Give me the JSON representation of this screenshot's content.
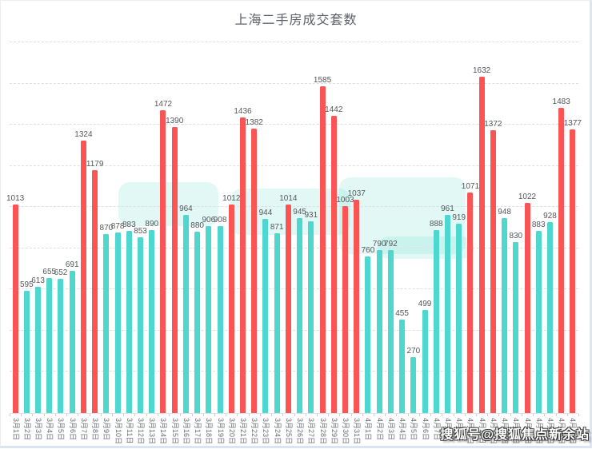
{
  "watermark": {
    "text": "搜狐号@搜狐焦点新余站"
  },
  "colors": {
    "bar_high": "#fb5454",
    "bar_low": "#4ed7ce",
    "grid": "#dce0e6",
    "label_text": "#54575d",
    "axis_text": "#6a6e74",
    "title_text": "#5d6168"
  },
  "chart_data": {
    "type": "bar",
    "title": "上海二手房成交套数",
    "xlabel": "",
    "ylabel": "",
    "y_axis_labels": "none",
    "legend": "none",
    "grid": "dashed horizontal",
    "x_label_rotation": 90,
    "data_labels": "above each bar",
    "ylim": [
      0,
      1800
    ],
    "grid_step": 200,
    "color_rule": {
      "threshold": 1000,
      "at_or_above": "#fb5454",
      "below": "#4ed7ce"
    },
    "categories": [
      "3月1日",
      "3月2日",
      "3月3日",
      "3月4日",
      "3月5日",
      "3月6日",
      "3月7日",
      "3月8日",
      "3月9日",
      "3月10日",
      "3月11日",
      "3月12日",
      "3月13日",
      "3月14日",
      "3月15日",
      "3月16日",
      "3月17日",
      "3月18日",
      "3月19日",
      "3月20日",
      "3月21日",
      "3月22日",
      "3月23日",
      "3月24日",
      "3月25日",
      "3月26日",
      "3月27日",
      "3月28日",
      "3月29日",
      "3月30日",
      "3月31日",
      "4月1日",
      "4月2日",
      "4月3日",
      "4月4日",
      "4月5日",
      "4月6日",
      "4月7日",
      "4月8日",
      "4月9日",
      "4月10日",
      "4月11日",
      "4月12日",
      "4月13日",
      "4月14日",
      "4月15日",
      "4月16日",
      "4月17日",
      "4月18日",
      "4月19日"
    ],
    "values": [
      1013,
      595,
      613,
      655,
      652,
      691,
      1324,
      1179,
      870,
      878,
      883,
      853,
      890,
      1472,
      1390,
      964,
      880,
      906,
      908,
      1012,
      1436,
      1382,
      944,
      871,
      1014,
      945,
      931,
      1585,
      1442,
      1003,
      1037,
      760,
      790,
      792,
      455,
      270,
      499,
      888,
      961,
      919,
      1071,
      1632,
      1372,
      948,
      830,
      1022,
      883,
      928,
      1483,
      1377
    ]
  }
}
